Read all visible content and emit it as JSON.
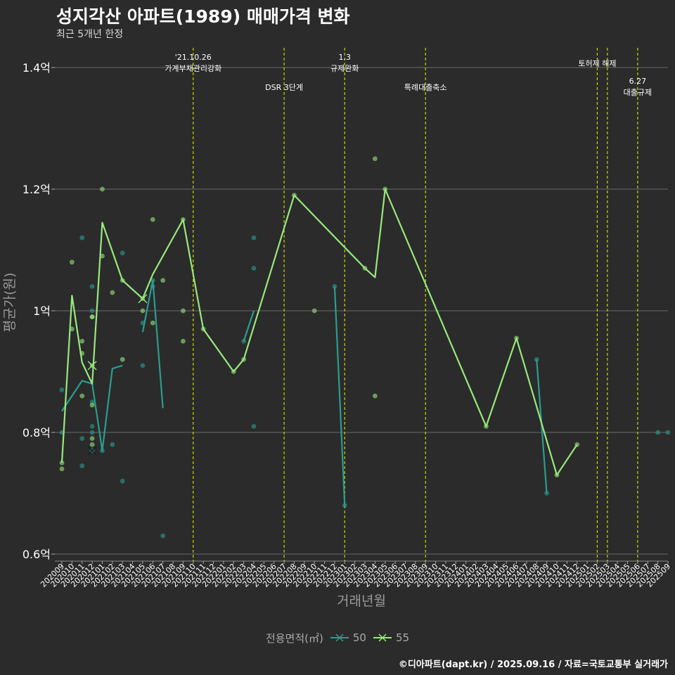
{
  "title": "성지각산 아파트(1989) 매매가격 변화",
  "subtitle": "최근 5개년 한정",
  "footer": "©디아파트(dapt.kr) / 2025.09.16 / 자료=국토교통부 실거래가",
  "legend_title": "전용면적(㎡)",
  "chart_data": {
    "type": "line",
    "xlabel": "거래년월",
    "ylabel": "평균가(원)",
    "x_ticks": [
      "202009",
      "202010",
      "202011",
      "202012",
      "202101",
      "202102",
      "202103",
      "202104",
      "202105",
      "202106",
      "202107",
      "202108",
      "202109",
      "202110",
      "202111",
      "202112",
      "202201",
      "202202",
      "202203",
      "202204",
      "202205",
      "202206",
      "202207",
      "202208",
      "202209",
      "202210",
      "202211",
      "202212",
      "202301",
      "202302",
      "202303",
      "202304",
      "202305",
      "202306",
      "202307",
      "202308",
      "202309",
      "202310",
      "202311",
      "202312",
      "202401",
      "202402",
      "202403",
      "202404",
      "202405",
      "202406",
      "202407",
      "202408",
      "202409",
      "202410",
      "202411",
      "202412",
      "202501",
      "202502",
      "202503",
      "202504",
      "202505",
      "202506",
      "202507",
      "202508",
      "202509"
    ],
    "y_ticks": [
      0.6,
      0.8,
      1.0,
      1.2,
      1.4
    ],
    "y_tick_labels": [
      "0.6억",
      "0.8억",
      "1억",
      "1.2억",
      "1.4억"
    ],
    "ylim": [
      0.6,
      1.42
    ],
    "grid": true,
    "legend_position": "bottom",
    "series": [
      {
        "name": "50",
        "color": "#2a9d8f",
        "line": [
          [
            "202009",
            0.835
          ],
          [
            "202011",
            0.885
          ],
          [
            "202012",
            0.88
          ],
          [
            "202101",
            0.77
          ],
          [
            "202102",
            0.905
          ],
          [
            "202103",
            0.91
          ],
          null,
          [
            "202105",
            0.965
          ],
          [
            "202106",
            1.05
          ],
          [
            "202107",
            0.84
          ],
          null,
          [
            "202203",
            0.95
          ],
          [
            "202204",
            1.0
          ],
          null,
          [
            "202212",
            1.04
          ],
          [
            "202301",
            0.68
          ],
          null,
          [
            "202408",
            0.92
          ],
          [
            "202409",
            0.7
          ]
        ],
        "points": [
          [
            "202009",
            0.87
          ],
          [
            "202009",
            0.8
          ],
          [
            "202011",
            1.12
          ],
          [
            "202011",
            0.79
          ],
          [
            "202011",
            0.745
          ],
          [
            "202012",
            1.04
          ],
          [
            "202012",
            1.0
          ],
          [
            "202012",
            0.85
          ],
          [
            "202012",
            0.81
          ],
          [
            "202012",
            0.8
          ],
          [
            "202012",
            0.77
          ],
          [
            "202101",
            0.77
          ],
          [
            "202102",
            0.78
          ],
          [
            "202103",
            1.095
          ],
          [
            "202103",
            0.72
          ],
          [
            "202105",
            0.91
          ],
          [
            "202105",
            0.98
          ],
          [
            "202106",
            1.05
          ],
          [
            "202106",
            1.04
          ],
          [
            "202107",
            0.63
          ],
          [
            "202203",
            0.95
          ],
          [
            "202204",
            1.12
          ],
          [
            "202204",
            1.07
          ],
          [
            "202204",
            0.81
          ],
          [
            "202212",
            1.04
          ],
          [
            "202301",
            0.68
          ],
          [
            "202408",
            0.92
          ],
          [
            "202409",
            0.7
          ],
          [
            "202508",
            0.8
          ],
          [
            "202509",
            0.8
          ]
        ],
        "crosses": [
          [
            "202012",
            0.77
          ]
        ]
      },
      {
        "name": "55",
        "color": "#98e87c",
        "line": [
          [
            "202009",
            0.75
          ],
          [
            "202010",
            1.025
          ],
          [
            "202011",
            0.915
          ],
          [
            "202012",
            0.88
          ],
          [
            "202101",
            1.145
          ],
          [
            "202103",
            1.05
          ],
          [
            "202105",
            1.02
          ],
          [
            "202106",
            1.06
          ],
          [
            "202109",
            1.15
          ],
          [
            "202111",
            0.97
          ],
          [
            "202202",
            0.9
          ],
          [
            "202203",
            0.92
          ],
          [
            "202208",
            1.19
          ],
          [
            "202303",
            1.07
          ],
          [
            "202304",
            1.055
          ],
          [
            "202305",
            1.2
          ],
          [
            "202403",
            0.81
          ],
          [
            "202406",
            0.955
          ],
          [
            "202410",
            0.73
          ],
          [
            "202412",
            0.78
          ]
        ],
        "points": [
          [
            "202009",
            0.75
          ],
          [
            "202009",
            0.74
          ],
          [
            "202010",
            1.08
          ],
          [
            "202010",
            0.97
          ],
          [
            "202011",
            0.95
          ],
          [
            "202011",
            0.93
          ],
          [
            "202011",
            0.86
          ],
          [
            "202012",
            0.99
          ],
          [
            "202012",
            0.99
          ],
          [
            "202012",
            0.91
          ],
          [
            "202012",
            0.845
          ],
          [
            "202012",
            0.79
          ],
          [
            "202012",
            0.78
          ],
          [
            "202101",
            1.2
          ],
          [
            "202101",
            1.09
          ],
          [
            "202102",
            1.03
          ],
          [
            "202103",
            1.05
          ],
          [
            "202103",
            0.92
          ],
          [
            "202105",
            1.0
          ],
          [
            "202105",
            1.02
          ],
          [
            "202106",
            1.15
          ],
          [
            "202106",
            0.98
          ],
          [
            "202107",
            1.05
          ],
          [
            "202109",
            1.15
          ],
          [
            "202109",
            1.0
          ],
          [
            "202109",
            0.95
          ],
          [
            "202111",
            0.97
          ],
          [
            "202202",
            0.9
          ],
          [
            "202203",
            0.92
          ],
          [
            "202208",
            1.19
          ],
          [
            "202210",
            1.0
          ],
          [
            "202303",
            1.07
          ],
          [
            "202304",
            1.25
          ],
          [
            "202304",
            0.86
          ],
          [
            "202305",
            1.2
          ],
          [
            "202403",
            0.81
          ],
          [
            "202406",
            0.955
          ],
          [
            "202410",
            0.73
          ],
          [
            "202412",
            0.78
          ]
        ],
        "crosses": [
          [
            "202012",
            0.91
          ],
          [
            "202105",
            1.02
          ]
        ]
      }
    ],
    "events": [
      {
        "x": "202110",
        "lines": [
          "'21.10.26",
          "가계부채관리강화"
        ],
        "row": 1
      },
      {
        "x": "202207",
        "lines": [
          "DSR 3단계"
        ],
        "row": 2
      },
      {
        "x": "202301",
        "lines": [
          "1.3",
          "규제완화"
        ],
        "row": 1
      },
      {
        "x": "202309",
        "lines": [
          "특례대출축소"
        ],
        "row": 2
      },
      {
        "x": "202502",
        "lines": [
          "토허제 해제"
        ],
        "row": 1
      },
      {
        "x": "202503",
        "lines": [],
        "row": 1
      },
      {
        "x": "202506",
        "lines": [
          "6.27",
          "대출규제"
        ],
        "row": 2
      }
    ]
  }
}
